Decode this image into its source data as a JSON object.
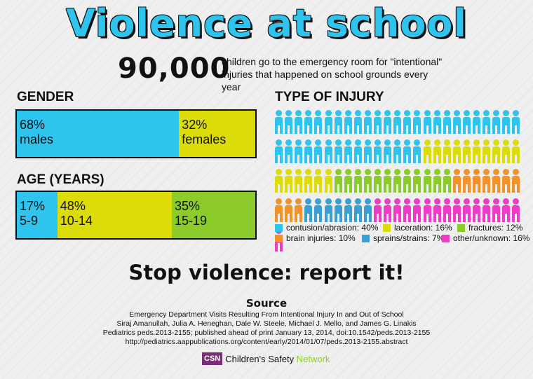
{
  "title": "Violence at school",
  "headline": {
    "number": "90,000",
    "text": "children go to the emergency room for \"intentional\" injuries that happened on school grounds every year"
  },
  "gender": {
    "heading": "GENDER",
    "segments": [
      {
        "pct_label": "68%",
        "label": "males",
        "value": 68,
        "color": "#2ec4ee"
      },
      {
        "pct_label": "32%",
        "label": "females",
        "value": 32,
        "color": "#dcdc0a"
      }
    ]
  },
  "age": {
    "heading": "AGE (YEARS)",
    "segments": [
      {
        "pct_label": "17%",
        "label": "5-9",
        "value": 17,
        "color": "#2ec4ee"
      },
      {
        "pct_label": "48%",
        "label": "10-14",
        "value": 48,
        "color": "#dcdc0a"
      },
      {
        "pct_label": "35%",
        "label": "15-19",
        "value": 35,
        "color": "#8bcc2a"
      }
    ]
  },
  "injury": {
    "heading": "TYPE OF INJURY",
    "legend": [
      {
        "label": "contusion/abrasion: 40%",
        "value": 40,
        "color": "#2ec4ee"
      },
      {
        "label": "laceration: 16%",
        "value": 16,
        "color": "#dcdc0a"
      },
      {
        "label": "fractures: 12%",
        "value": 12,
        "color": "#8bcc2a"
      },
      {
        "label": "brain injuries: 10%",
        "value": 10,
        "color": "#f2922a"
      },
      {
        "label": "sprains/strains: 7%",
        "value": 7,
        "color": "#3a9fd6"
      },
      {
        "label": "other/unknown: 16%",
        "value": 16,
        "color": "#ee3cc8"
      }
    ]
  },
  "chart_data": [
    {
      "type": "bar",
      "title": "GENDER",
      "categories": [
        "males",
        "females"
      ],
      "values": [
        68,
        32
      ]
    },
    {
      "type": "bar",
      "title": "AGE (YEARS)",
      "categories": [
        "5-9",
        "10-14",
        "15-19"
      ],
      "values": [
        17,
        48,
        35
      ]
    },
    {
      "type": "bar",
      "title": "TYPE OF INJURY",
      "categories": [
        "contusion/abrasion",
        "laceration",
        "fractures",
        "brain injuries",
        "sprains/strains",
        "other/unknown"
      ],
      "values": [
        40,
        16,
        12,
        10,
        7,
        16
      ]
    }
  ],
  "slogan": "Stop violence: report it!",
  "source": {
    "heading": "Source",
    "lines": [
      "Emergency Department Visits Resulting From Intentional Injury In and Out of School",
      "Siraj Amanullah, Julia A. Heneghan, Dale W. Steele, Michael J. Mello, and James G. Linakis",
      "Pediatrics peds.2013-2155; published ahead of print January 13, 2014, doi:10.1542/peds.2013-2155",
      "http://pediatrics.aappublications.org/content/early/2014/01/07/peds.2013-2155.abstract"
    ]
  },
  "logo": {
    "abbr": "CSN",
    "name_main": "Children's Safety",
    "name_accent": "Network",
    "accent_color": "#8bcc2a"
  }
}
